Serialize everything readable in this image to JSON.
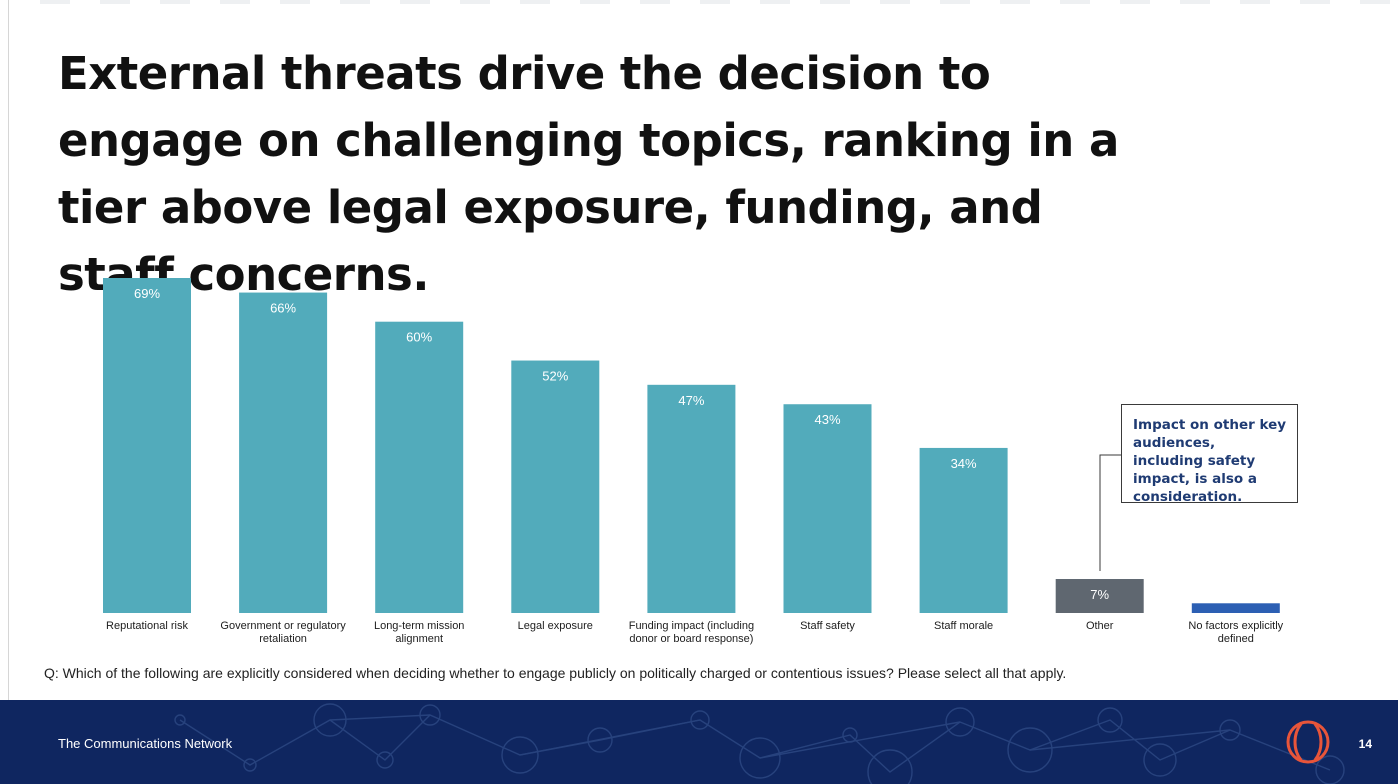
{
  "title": "External threats drive the decision to engage on challenging topics, ranking in a tier above legal exposure, funding, and staff concerns.",
  "question": "Q: Which of the following are explicitly considered when deciding whether to engage publicly on politically charged or contentious issues? Please select all that apply.",
  "callout": "Impact on other key audiences, including safety impact, is also a consideration.",
  "footer": {
    "organization": "The Communications Network",
    "page_number": "14"
  },
  "colors": {
    "bar": "#52abbb",
    "other_bar": "#5f6770",
    "none_bar": "#2c5fb3",
    "footer_bg": "#0f2660",
    "logo": "#e8553a"
  },
  "chart_data": {
    "type": "bar",
    "title": "",
    "xlabel": "",
    "ylabel": "",
    "ylim": [
      0,
      69
    ],
    "categories": [
      "Reputational risk",
      "Government or regulatory retaliation",
      "Long-term mission alignment",
      "Legal exposure",
      "Funding impact (including donor or board response)",
      "Staff safety",
      "Staff morale",
      "Other",
      "No factors explicitly defined"
    ],
    "category_lines": [
      [
        "Reputational risk"
      ],
      [
        "Government or regulatory",
        "retaliation"
      ],
      [
        "Long-term mission",
        "alignment"
      ],
      [
        "Legal exposure"
      ],
      [
        "Funding impact (including",
        "donor or board response)"
      ],
      [
        "Staff safety"
      ],
      [
        "Staff morale"
      ],
      [
        "Other"
      ],
      [
        "No factors explicitly",
        "defined"
      ]
    ],
    "values": [
      69,
      66,
      60,
      52,
      47,
      43,
      34,
      7,
      2
    ],
    "labels": [
      "69%",
      "66%",
      "60%",
      "52%",
      "47%",
      "43%",
      "34%",
      "7%",
      ""
    ]
  }
}
